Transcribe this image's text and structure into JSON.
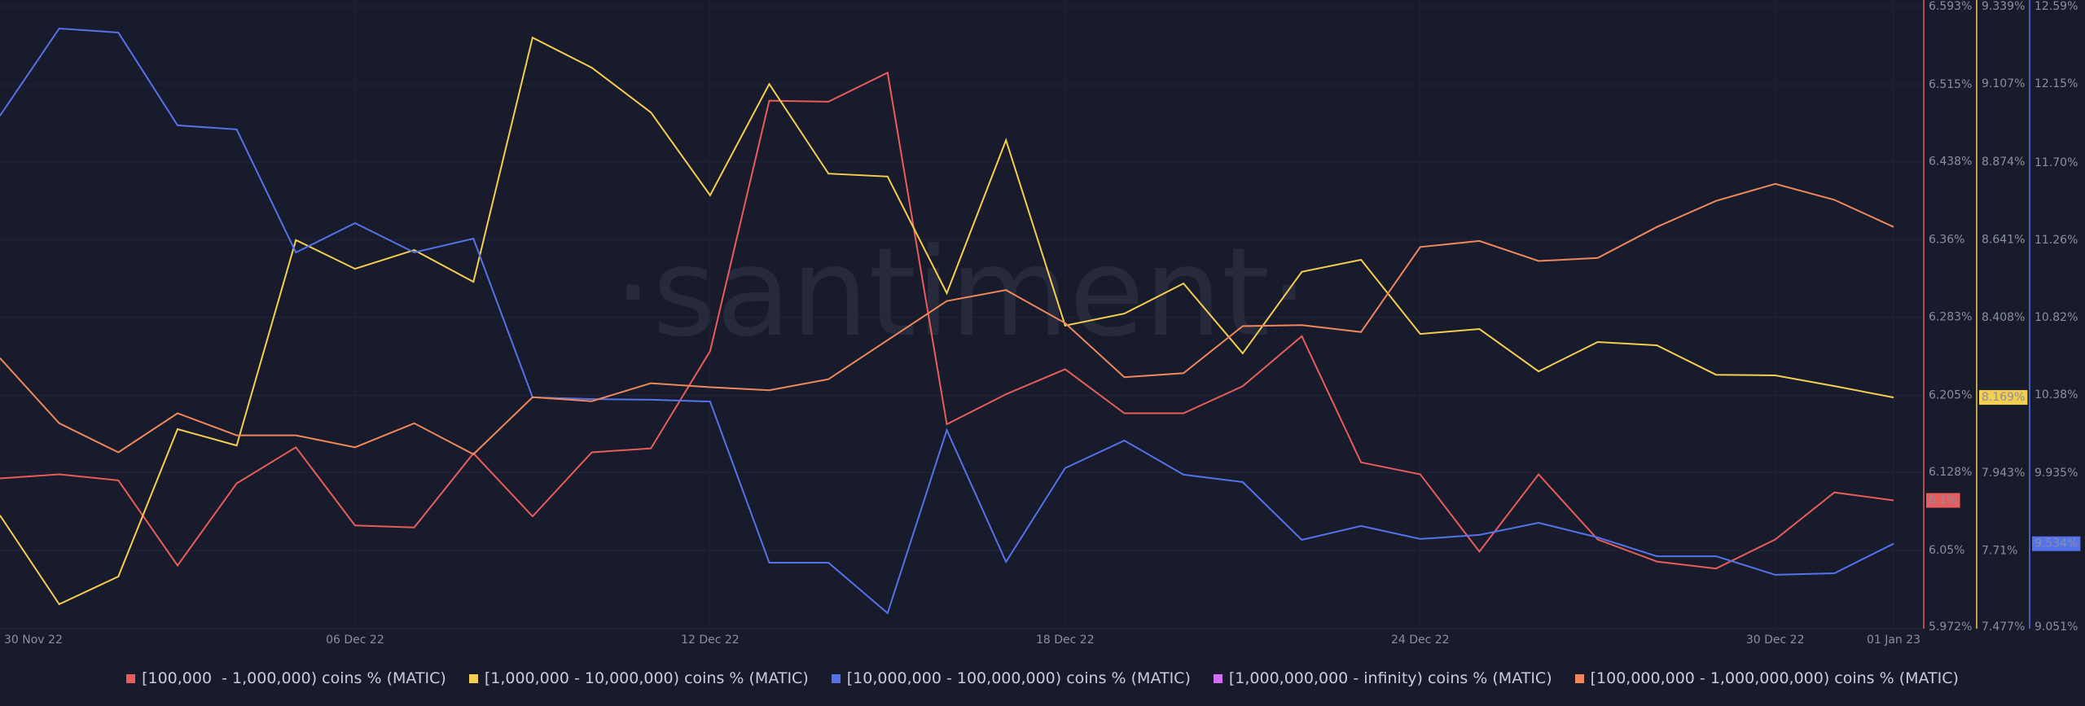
{
  "chart_data": {
    "type": "line",
    "watermark": "·santiment·",
    "categories": [
      "30 Nov 22",
      null,
      null,
      null,
      null,
      null,
      "06 Dec 22",
      null,
      null,
      null,
      null,
      null,
      "12 Dec 22",
      null,
      null,
      null,
      null,
      null,
      "18 Dec 22",
      null,
      null,
      null,
      null,
      null,
      "24 Dec 22",
      null,
      null,
      null,
      null,
      null,
      "30 Dec 22",
      null,
      "01 Jan 23"
    ],
    "ylim": [
      5.972,
      6.593
    ],
    "yticks": [
      {
        "value": 6.593,
        "label": "6.593%"
      },
      {
        "value": 6.515,
        "label": "6.515%"
      },
      {
        "value": 6.438,
        "label": "6.438%"
      },
      {
        "value": 6.36,
        "label": "6.36%"
      },
      {
        "value": 6.283,
        "label": "6.283%"
      },
      {
        "value": 6.205,
        "label": "6.205%"
      },
      {
        "value": 6.128,
        "label": "6.128%"
      },
      {
        "value": 6.05,
        "label": "6.05%"
      },
      {
        "value": 5.972,
        "label": "5.972%"
      }
    ],
    "y2lim": [
      7.477,
      9.339
    ],
    "y2ticks": [
      {
        "value": 9.339,
        "label": "9.339%"
      },
      {
        "value": 9.107,
        "label": "9.107%"
      },
      {
        "value": 8.874,
        "label": "8.874%"
      },
      {
        "value": 8.641,
        "label": "8.641%"
      },
      {
        "value": 8.408,
        "label": "8.408%"
      },
      {
        "value": 7.943,
        "label": "7.943%"
      },
      {
        "value": 7.71,
        "label": "7.71%"
      },
      {
        "value": 7.477,
        "label": "7.477%"
      }
    ],
    "y3lim": [
      9.051,
      12.59
    ],
    "y3ticks": [
      {
        "value": 12.59,
        "label": "12.59%"
      },
      {
        "value": 12.15,
        "label": "12.15%"
      },
      {
        "value": 11.7,
        "label": "11.70%"
      },
      {
        "value": 11.26,
        "label": "11.26%"
      },
      {
        "value": 10.82,
        "label": "10.82%"
      },
      {
        "value": 10.38,
        "label": "10.38%"
      },
      {
        "value": 9.935,
        "label": "9.935%"
      },
      {
        "value": 9.051,
        "label": "9.051%"
      }
    ],
    "grid": true,
    "series": [
      {
        "name": "[100,000  - 1,000,000) coins % (MATIC)",
        "color": "#e85c5c",
        "axis": "y",
        "values": [
          6.122,
          6.126,
          6.12,
          6.035,
          6.117,
          6.153,
          6.075,
          6.073,
          6.147,
          6.084,
          6.148,
          6.152,
          6.249,
          6.499,
          6.498,
          6.527,
          6.176,
          6.206,
          6.231,
          6.187,
          6.187,
          6.214,
          6.264,
          6.138,
          6.126,
          6.049,
          6.126,
          6.061,
          6.039,
          6.032,
          6.061,
          6.108,
          6.1
        ],
        "value_labels": [
          null,
          null,
          null,
          null,
          null,
          null,
          null,
          null,
          null,
          null,
          null,
          null,
          null,
          null,
          null,
          null,
          null,
          null,
          null,
          null,
          null,
          null,
          null,
          null,
          null,
          null,
          null,
          null,
          null,
          null,
          null,
          null,
          "6.1%"
        ]
      },
      {
        "name": "[1,000,000 - 10,000,000) coins % (MATIC)",
        "color": "#f4cf4e",
        "axis": "y2",
        "values": [
          7.816,
          7.55,
          7.633,
          8.074,
          8.025,
          8.64,
          8.554,
          8.61,
          8.515,
          9.246,
          9.156,
          9.022,
          8.774,
          9.107,
          8.839,
          8.83,
          8.481,
          8.939,
          8.384,
          8.42,
          8.51,
          8.301,
          8.545,
          8.581,
          8.359,
          8.374,
          8.247,
          8.335,
          8.325,
          8.237,
          8.235,
          8.203,
          8.169
        ],
        "value_labels": [
          null,
          null,
          null,
          null,
          null,
          null,
          null,
          null,
          null,
          null,
          null,
          null,
          null,
          null,
          null,
          null,
          null,
          null,
          null,
          null,
          null,
          null,
          null,
          null,
          null,
          null,
          null,
          null,
          null,
          null,
          null,
          null,
          "8.169%"
        ]
      },
      {
        "name": "[10,000,000 - 100,000,000) coins % (MATIC)",
        "color": "#5572ea",
        "axis": "y3",
        "values": [
          11.969,
          12.465,
          12.442,
          11.914,
          11.891,
          11.191,
          11.358,
          11.191,
          11.27,
          10.367,
          10.357,
          10.353,
          10.343,
          9.426,
          9.426,
          9.139,
          10.181,
          9.431,
          9.964,
          10.121,
          9.927,
          9.885,
          9.556,
          9.635,
          9.561,
          9.584,
          9.653,
          9.57,
          9.463,
          9.463,
          9.357,
          9.366,
          9.534
        ],
        "value_labels": [
          null,
          null,
          null,
          null,
          null,
          null,
          null,
          null,
          null,
          null,
          null,
          null,
          null,
          null,
          null,
          null,
          null,
          null,
          null,
          null,
          null,
          null,
          null,
          null,
          null,
          null,
          null,
          null,
          null,
          null,
          null,
          null,
          "9.534%"
        ]
      },
      {
        "name": "[1,000,000,000 - infinity) coins % (MATIC)",
        "color": "#d46ef2"
      },
      {
        "name": "[100,000,000 - 1,000,000,000) coins % (MATIC)",
        "color": "#f0885c",
        "axis": "y",
        "values": [
          6.242,
          6.177,
          6.148,
          6.187,
          6.165,
          6.165,
          6.153,
          6.177,
          6.146,
          6.203,
          6.199,
          6.217,
          6.213,
          6.21,
          6.221,
          6.26,
          6.299,
          6.31,
          6.277,
          6.223,
          6.227,
          6.274,
          6.275,
          6.268,
          6.353,
          6.359,
          6.339,
          6.342,
          6.373,
          6.399,
          6.416,
          6.4,
          6.373
        ]
      }
    ]
  }
}
